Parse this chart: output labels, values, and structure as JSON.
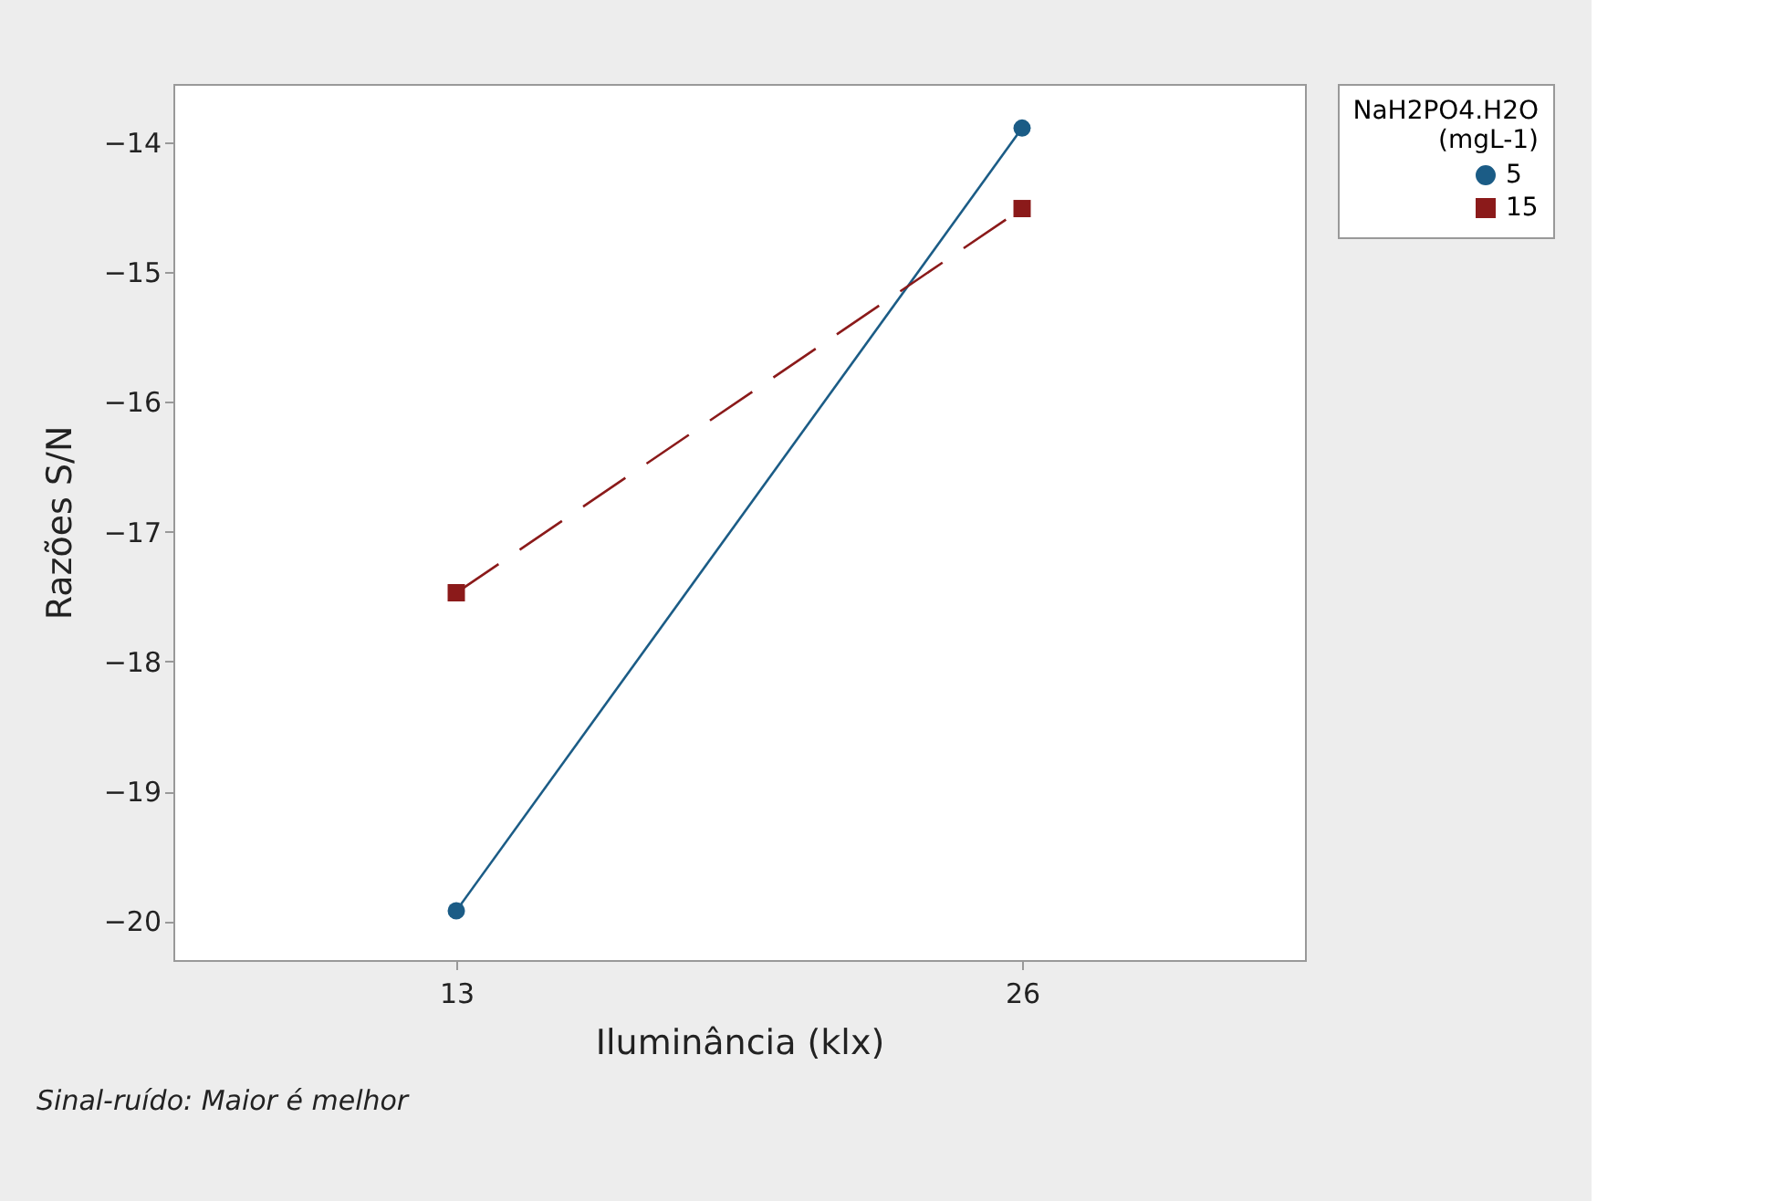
{
  "chart_data": {
    "type": "line",
    "xlabel": "Iluminância (klx)",
    "ylabel": "Razões S/N",
    "legend_title": "NaH2PO4.H2O (mgL-1)",
    "categories": [
      "13",
      "26"
    ],
    "series": [
      {
        "name": "5",
        "color": "#1b5c86",
        "values": [
          -19.92,
          -13.89
        ],
        "marker": "circle",
        "line_style": "solid"
      },
      {
        "name": "15",
        "color": "#8b1a1a",
        "values": [
          -17.47,
          -14.51
        ],
        "marker": "square",
        "line_style": "dashed"
      }
    ],
    "ylim": [
      -20.3,
      -13.55
    ],
    "yticks": [
      -20,
      -19,
      -18,
      -17,
      -16,
      -15,
      -14
    ],
    "grid": false,
    "legend": "top right",
    "annotations": [
      "Sinal-ruído: Maior é melhor"
    ]
  }
}
